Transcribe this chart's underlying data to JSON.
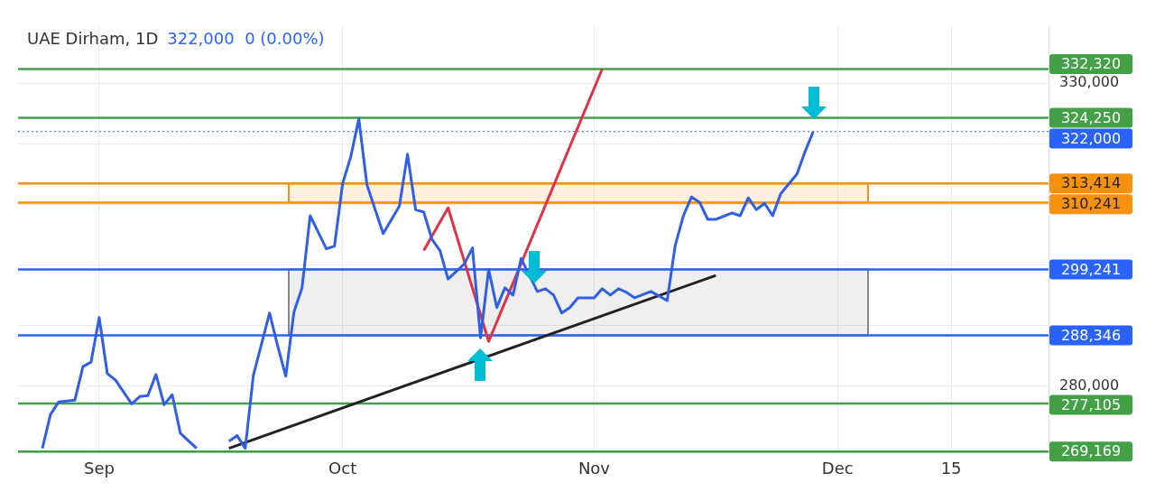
{
  "chart_data": {
    "type": "line",
    "title": "UAE Dirham, 1D",
    "subtitle": "322,000  0 (0.00%)",
    "x": [
      "--08-25",
      "--08-26",
      "--08-27",
      "--08-29",
      "--08-30",
      "--08-31",
      "--09-01",
      "--09-02",
      "--09-03",
      "--09-05",
      "--09-06",
      "--09-07",
      "--09-08",
      "--09-09",
      "--09-10",
      "--09-11",
      "--09-13",
      "--09-16",
      "--09-17",
      "--09-18",
      "--09-19",
      "--09-20",
      "--09-22",
      "--09-23",
      "--09-24",
      "--09-25",
      "--09-26",
      "--09-27",
      "--09-29",
      "--09-30",
      "--10-01",
      "--10-02",
      "--10-03",
      "--10-04",
      "--10-06",
      "--10-08",
      "--10-09",
      "--10-10",
      "--10-11",
      "--10-12",
      "--10-13",
      "--10-14",
      "--10-16",
      "--10-17",
      "--10-18",
      "--10-19",
      "--10-20",
      "--10-21",
      "--10-22",
      "--10-23",
      "--10-25",
      "--10-26",
      "--10-27",
      "--10-28",
      "--10-29",
      "--10-30",
      "--11-01",
      "--11-02",
      "--11-03",
      "--11-04",
      "--11-05",
      "--11-06",
      "--11-08",
      "--11-10",
      "--11-11",
      "--11-12",
      "--11-13",
      "--11-14",
      "--11-15",
      "--11-16",
      "--11-18",
      "--11-19",
      "--11-20",
      "--11-21",
      "--11-22",
      "--11-23",
      "--11-24",
      "--11-26",
      "--11-27",
      "--11-28"
    ],
    "series": [
      {
        "color": "#2f5fe6",
        "values": [
          269700,
          275300,
          277350,
          277650,
          283200,
          283950,
          291300,
          282050,
          281000,
          277050,
          278250,
          278400,
          281900,
          276900,
          278550,
          272200,
          269700,
          null,
          270900,
          271800,
          269700,
          281750,
          292050,
          286600,
          281600,
          292200,
          296200,
          308100,
          302650,
          303100,
          313400,
          317800,
          324100,
          313200,
          305150,
          309700,
          318250,
          309100,
          308700,
          304250,
          302350,
          297650,
          300150,
          302800,
          287950,
          299250,
          292950,
          296200,
          295000,
          301050,
          295600,
          296050,
          295000,
          292050,
          292950,
          294550,
          294550,
          296050,
          295000,
          296050,
          295450,
          294550,
          295600,
          294100,
          303250,
          308100,
          311200,
          310300,
          307500,
          307500,
          308550,
          308100,
          311050,
          309100,
          310150,
          308100,
          311750,
          315000,
          318700,
          322000
        ]
      },
      {
        "color": "#e03245",
        "x": [
          "--10-11",
          "--10-14",
          "--10-19",
          "--11-02"
        ],
        "values": [
          302350,
          309400,
          287350,
          332350
        ]
      },
      {
        "color": "#222222",
        "x": [
          "--09-17",
          "--11-16"
        ],
        "values": [
          269700,
          298250
        ]
      }
    ],
    "xlim": [
      "--08-22",
      "--12-27"
    ],
    "xticks": [
      {
        "value": "--09-01",
        "label": "Sep"
      },
      {
        "value": "--10-01",
        "label": "Oct"
      },
      {
        "value": "--11-01",
        "label": "Nov"
      },
      {
        "value": "--12-01",
        "label": "Dec"
      },
      {
        "value": "--12-15",
        "label": "15"
      }
    ],
    "ylim": [
      269000,
      339300
    ],
    "yticks": [
      {
        "value": 280000,
        "label": "280,000"
      },
      {
        "value": 290000,
        "label": null
      },
      {
        "value": 300000,
        "label": null
      },
      {
        "value": 310000,
        "label": null
      },
      {
        "value": 320000,
        "label": null
      },
      {
        "value": 330000,
        "label": "330,000"
      }
    ],
    "ref_lines": [
      {
        "axis": "y",
        "value": 332320,
        "label": "332,320",
        "color": "#43a047"
      },
      {
        "axis": "y",
        "value": 324250,
        "label": "324,250",
        "color": "#43a047"
      },
      {
        "axis": "y",
        "value": 322000,
        "label": "322,000",
        "color": "#2962ff",
        "line_style": "dotted"
      },
      {
        "axis": "y",
        "value": 313414,
        "label": "313,414",
        "color": "#f7920f"
      },
      {
        "axis": "y",
        "value": 310241,
        "label": "310,241",
        "color": "#f7920f"
      },
      {
        "axis": "y",
        "value": 299241,
        "label": "299,241",
        "color": "#2962ff"
      },
      {
        "axis": "y",
        "value": 288346,
        "label": "288,346",
        "color": "#2962ff"
      },
      {
        "axis": "y",
        "value": 277105,
        "label": "277,105",
        "color": "#43a047"
      },
      {
        "axis": "y",
        "value": 269169,
        "label": "269,169",
        "color": "#43a047"
      }
    ],
    "bands": [
      {
        "axis": "y",
        "from": 310241,
        "to": 313414,
        "color": "#f7920f"
      },
      {
        "axis": "y",
        "from": 288346,
        "to": 299241,
        "color": "#888888"
      }
    ],
    "grid": true,
    "legend": false,
    "marker": "none",
    "line_style": "solid"
  }
}
